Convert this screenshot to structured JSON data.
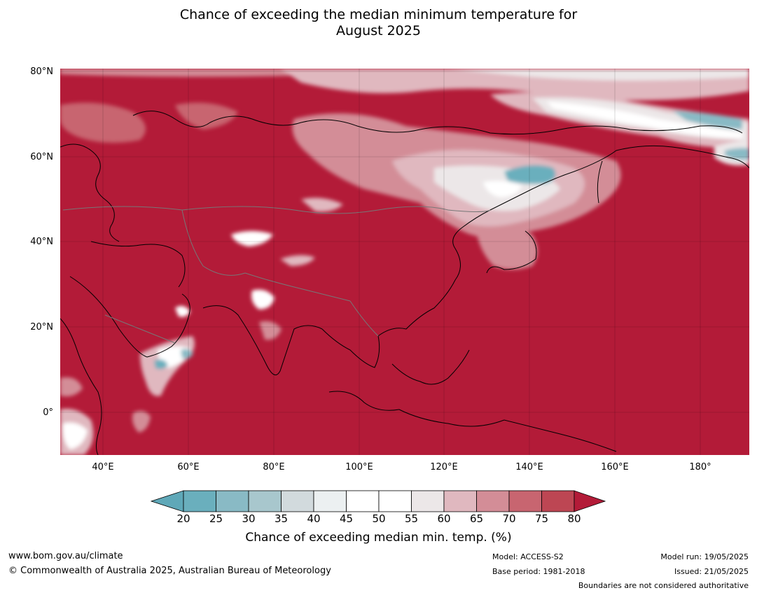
{
  "title": {
    "line1": "Chance of exceeding the median minimum temperature for",
    "line2": "August 2025"
  },
  "map": {
    "lat_ticks": [
      "80°N",
      "60°N",
      "40°N",
      "20°N",
      "0°"
    ],
    "lon_ticks": [
      "40°E",
      "60°E",
      "80°E",
      "100°E",
      "120°E",
      "140°E",
      "160°E",
      "180°"
    ],
    "lon_range": [
      30,
      191
    ],
    "lat_range": [
      -10,
      81
    ],
    "dominant_color": "#b31b38"
  },
  "colorbar": {
    "title": "Chance of exceeding median min. temp. (%)",
    "labels": [
      "20",
      "25",
      "30",
      "35",
      "40",
      "45",
      "50",
      "55",
      "60",
      "65",
      "70",
      "75",
      "80"
    ],
    "colors": [
      "#5fa8b8",
      "#6aafbd",
      "#89bac5",
      "#a8c7cd",
      "#d2dadd",
      "#ecf0f1",
      "#ffffff",
      "#ffffff",
      "#ece7e8",
      "#e0b8bf",
      "#d38d97",
      "#c86570",
      "#bd4653",
      "#b31b38"
    ]
  },
  "footer": {
    "url": "www.bom.gov.au/climate",
    "copyright": "© Commonwealth of Australia 2025, Australian Bureau of Meteorology",
    "model": "Model: ACCESS-S2",
    "base_period": "Base period: 1981-2018",
    "model_run": "Model run: 19/05/2025",
    "issued": "Issued: 21/05/2025",
    "disclaimer": "Boundaries are not considered authoritative"
  }
}
